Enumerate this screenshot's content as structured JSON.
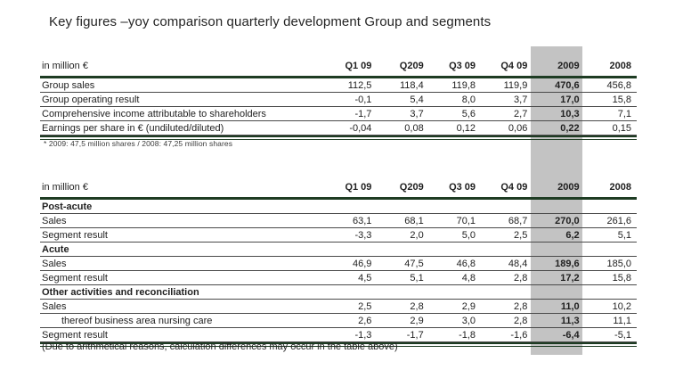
{
  "title": "Key figures –yoy comparison quarterly development Group and segments",
  "footnote": "* 2009: 47,5 million shares / 2008: 47,25 million shares",
  "caption": "(Due to arithmetical reasons, calculation differences may occur in the table above)",
  "colors": {
    "rule_green": "#1e3c23",
    "row_line": "#4a4a4a",
    "highlight_band": "#c3c3c3",
    "text": "#1f1f1f"
  },
  "highlight_column": "2009",
  "columns": [
    "Q1 09",
    "Q209",
    "Q3 09",
    "Q4 09",
    "2009",
    "2008"
  ],
  "chart_data": [
    {
      "type": "table",
      "name": "group-key-figures",
      "unit_label": "in million €",
      "columns": [
        "Q1 09",
        "Q209",
        "Q3 09",
        "Q4 09",
        "2009",
        "2008"
      ],
      "rows": [
        {
          "type": "data",
          "label": "Group sales",
          "values": [
            "112,5",
            "118,4",
            "119,8",
            "119,9",
            "470,6",
            "456,8"
          ]
        },
        {
          "type": "data",
          "label": "Group operating result",
          "values": [
            "-0,1",
            "5,4",
            "8,0",
            "3,7",
            "17,0",
            "15,8"
          ]
        },
        {
          "type": "data",
          "label": "Comprehensive income attributable to shareholders",
          "values": [
            "-1,7",
            "3,7",
            "5,6",
            "2,7",
            "10,3",
            "7,1"
          ]
        },
        {
          "type": "data",
          "label": "Earnings per share in € (undiluted/diluted)",
          "values": [
            "-0,04",
            "0,08",
            "0,12",
            "0,06",
            "0,22",
            "0,15"
          ]
        }
      ]
    },
    {
      "type": "table",
      "name": "segments",
      "unit_label": "in million €",
      "columns": [
        "Q1 09",
        "Q209",
        "Q3 09",
        "Q4 09",
        "2009",
        "2008"
      ],
      "rows": [
        {
          "type": "section",
          "label": "Post-acute"
        },
        {
          "type": "data",
          "label": "Sales",
          "values": [
            "63,1",
            "68,1",
            "70,1",
            "68,7",
            "270,0",
            "261,6"
          ]
        },
        {
          "type": "data",
          "label": "Segment result",
          "values": [
            "-3,3",
            "2,0",
            "5,0",
            "2,5",
            "6,2",
            "5,1"
          ]
        },
        {
          "type": "section",
          "label": "Acute"
        },
        {
          "type": "data",
          "label": "Sales",
          "values": [
            "46,9",
            "47,5",
            "46,8",
            "48,4",
            "189,6",
            "185,0"
          ]
        },
        {
          "type": "data",
          "label": "Segment result",
          "values": [
            "4,5",
            "5,1",
            "4,8",
            "2,8",
            "17,2",
            "15,8"
          ]
        },
        {
          "type": "section",
          "label": "Other activities and reconciliation"
        },
        {
          "type": "data",
          "label": "Sales",
          "values": [
            "2,5",
            "2,8",
            "2,9",
            "2,8",
            "11,0",
            "10,2"
          ]
        },
        {
          "type": "indent",
          "label": "thereof business area nursing care",
          "values": [
            "2,6",
            "2,9",
            "3,0",
            "2,8",
            "11,3",
            "11,1"
          ]
        },
        {
          "type": "data",
          "label": "Segment result",
          "values": [
            "-1,3",
            "-1,7",
            "-1,8",
            "-1,6",
            "-6,4",
            "-5,1"
          ]
        }
      ]
    }
  ]
}
